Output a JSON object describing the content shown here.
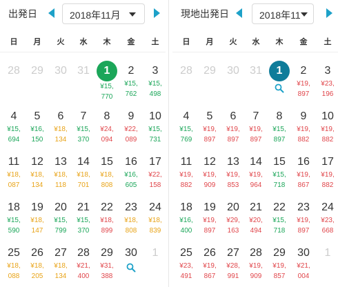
{
  "colors": {
    "green": "#1ba659",
    "orange": "#e8a317",
    "red": "#e0454a",
    "teal": "#0f7c9a",
    "arrow": "#1da1c8",
    "dim": "#cccccc"
  },
  "weekdays": [
    "日",
    "月",
    "火",
    "水",
    "木",
    "金",
    "土"
  ],
  "left": {
    "title": "出発日",
    "month": "2018年11月",
    "weeks": [
      [
        {
          "n": "28",
          "dim": true
        },
        {
          "n": "29",
          "dim": true
        },
        {
          "n": "30",
          "dim": true
        },
        {
          "n": "31",
          "dim": true
        },
        {
          "n": "1",
          "selected": true,
          "p": "¥15,\n770",
          "c": "green"
        },
        {
          "n": "2",
          "p": "¥15,\n762",
          "c": "green"
        },
        {
          "n": "3",
          "p": "¥15,\n498",
          "c": "green"
        }
      ],
      [
        {
          "n": "4",
          "p": "¥15,\n694",
          "c": "green"
        },
        {
          "n": "5",
          "p": "¥16,\n150",
          "c": "green"
        },
        {
          "n": "6",
          "p": "¥18,\n134",
          "c": "orange"
        },
        {
          "n": "7",
          "p": "¥15,\n370",
          "c": "green"
        },
        {
          "n": "8",
          "p": "¥24,\n094",
          "c": "red"
        },
        {
          "n": "9",
          "p": "¥22,\n089",
          "c": "red"
        },
        {
          "n": "10",
          "p": "¥15,\n731",
          "c": "green"
        }
      ],
      [
        {
          "n": "11",
          "p": "¥18,\n087",
          "c": "orange"
        },
        {
          "n": "12",
          "p": "¥18,\n134",
          "c": "orange"
        },
        {
          "n": "13",
          "p": "¥18,\n118",
          "c": "orange"
        },
        {
          "n": "14",
          "p": "¥18,\n701",
          "c": "orange"
        },
        {
          "n": "15",
          "p": "¥18,\n808",
          "c": "orange"
        },
        {
          "n": "16",
          "p": "¥16,\n605",
          "c": "green"
        },
        {
          "n": "17",
          "p": "¥22,\n158",
          "c": "red"
        }
      ],
      [
        {
          "n": "18",
          "p": "¥15,\n590",
          "c": "green"
        },
        {
          "n": "19",
          "p": "¥18,\n147",
          "c": "orange"
        },
        {
          "n": "20",
          "p": "¥15,\n799",
          "c": "green"
        },
        {
          "n": "21",
          "p": "¥15,\n370",
          "c": "green"
        },
        {
          "n": "22",
          "p": "¥18,\n899",
          "c": "red"
        },
        {
          "n": "23",
          "p": "¥18,\n808",
          "c": "orange"
        },
        {
          "n": "24",
          "p": "¥18,\n839",
          "c": "orange"
        }
      ],
      [
        {
          "n": "25",
          "p": "¥18,\n088",
          "c": "orange"
        },
        {
          "n": "26",
          "p": "¥18,\n205",
          "c": "orange"
        },
        {
          "n": "27",
          "p": "¥18,\n134",
          "c": "orange"
        },
        {
          "n": "28",
          "p": "¥21,\n400",
          "c": "red"
        },
        {
          "n": "29",
          "p": "¥31,\n388",
          "c": "red"
        },
        {
          "n": "30",
          "search": true
        },
        {
          "n": "1",
          "dim": true
        }
      ]
    ]
  },
  "right": {
    "title": "現地出発日",
    "month": "2018年11",
    "weeks": [
      [
        {
          "n": "28",
          "dim": true
        },
        {
          "n": "29",
          "dim": true
        },
        {
          "n": "30",
          "dim": true
        },
        {
          "n": "31",
          "dim": true
        },
        {
          "n": "1",
          "selected": true,
          "search": true
        },
        {
          "n": "2",
          "p": "¥19,\n897",
          "c": "red"
        },
        {
          "n": "3",
          "p": "¥23,\n196",
          "c": "red"
        }
      ],
      [
        {
          "n": "4",
          "p": "¥15,\n769",
          "c": "green"
        },
        {
          "n": "5",
          "p": "¥19,\n897",
          "c": "red"
        },
        {
          "n": "6",
          "p": "¥19,\n897",
          "c": "red"
        },
        {
          "n": "7",
          "p": "¥19,\n897",
          "c": "red"
        },
        {
          "n": "8",
          "p": "¥15,\n897",
          "c": "green"
        },
        {
          "n": "9",
          "p": "¥19,\n882",
          "c": "red"
        },
        {
          "n": "10",
          "p": "¥19,\n882",
          "c": "red"
        }
      ],
      [
        {
          "n": "11",
          "p": "¥19,\n882",
          "c": "red"
        },
        {
          "n": "12",
          "p": "¥19,\n909",
          "c": "red"
        },
        {
          "n": "13",
          "p": "¥19,\n853",
          "c": "red"
        },
        {
          "n": "14",
          "p": "¥19,\n964",
          "c": "red"
        },
        {
          "n": "15",
          "p": "¥15,\n718",
          "c": "green"
        },
        {
          "n": "16",
          "p": "¥19,\n867",
          "c": "red"
        },
        {
          "n": "17",
          "p": "¥19,\n882",
          "c": "red"
        }
      ],
      [
        {
          "n": "18",
          "p": "¥16,\n400",
          "c": "green"
        },
        {
          "n": "19",
          "p": "¥19,\n897",
          "c": "red"
        },
        {
          "n": "20",
          "p": "¥29,\n163",
          "c": "red"
        },
        {
          "n": "21",
          "p": "¥20,\n494",
          "c": "red"
        },
        {
          "n": "22",
          "p": "¥15,\n718",
          "c": "green"
        },
        {
          "n": "23",
          "p": "¥19,\n897",
          "c": "red"
        },
        {
          "n": "24",
          "p": "¥23,\n668",
          "c": "red"
        }
      ],
      [
        {
          "n": "25",
          "p": "¥23,\n491",
          "c": "red"
        },
        {
          "n": "26",
          "p": "¥19,\n867",
          "c": "red"
        },
        {
          "n": "27",
          "p": "¥28,\n991",
          "c": "red"
        },
        {
          "n": "28",
          "p": "¥19,\n909",
          "c": "red"
        },
        {
          "n": "29",
          "p": "¥19,\n857",
          "c": "red"
        },
        {
          "n": "30",
          "p": "¥21,\n004",
          "c": "red"
        },
        {
          "n": "1",
          "dim": true
        }
      ]
    ]
  }
}
